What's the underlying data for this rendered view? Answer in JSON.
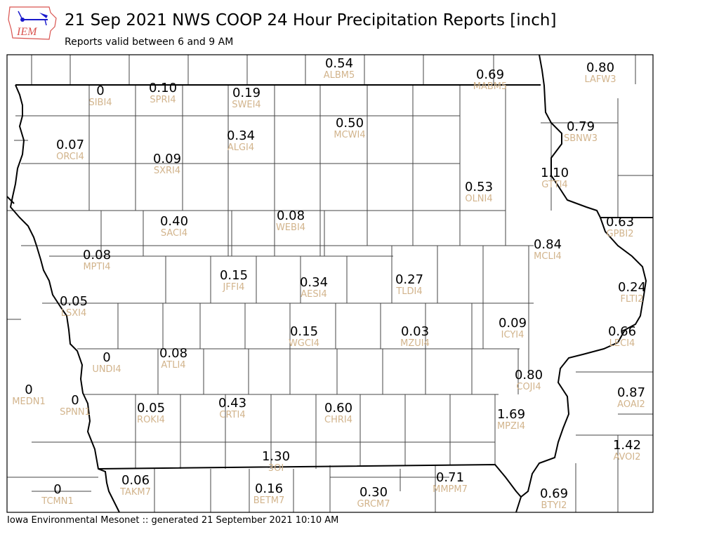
{
  "header": {
    "logo_text": "IEM",
    "title": "21 Sep 2021 NWS COOP 24 Hour Precipitation Reports [inch]",
    "subtitle": "Reports valid between 6 and 9 AM"
  },
  "footer": "Iowa Environmental Mesonet :: generated 21 September 2021 10:10 AM",
  "colors": {
    "value": "#000000",
    "station_label": "#d2b48c",
    "state_border": "#000000",
    "county_line": "#555555",
    "logo": "#d9534f",
    "logo_icon": "#1a1acc"
  },
  "stations": [
    {
      "id": "SIBI4",
      "value": "0"
    },
    {
      "id": "SPRI4",
      "value": "0.10"
    },
    {
      "id": "SWEI4",
      "value": "0.19"
    },
    {
      "id": "ALBM5",
      "value": "0.54"
    },
    {
      "id": "MABM5",
      "value": "0.69"
    },
    {
      "id": "LAFW3",
      "value": "0.80"
    },
    {
      "id": "ORCI4",
      "value": "0.07"
    },
    {
      "id": "ALGI4",
      "value": "0.34"
    },
    {
      "id": "MCWI4",
      "value": "0.50"
    },
    {
      "id": "SBNW3",
      "value": "0.79"
    },
    {
      "id": "SXRI4",
      "value": "0.09"
    },
    {
      "id": "GTTI4",
      "value": "1.10"
    },
    {
      "id": "OLNI4",
      "value": "0.53"
    },
    {
      "id": "SACI4",
      "value": "0.40"
    },
    {
      "id": "WEBI4",
      "value": "0.08"
    },
    {
      "id": "GPBI2",
      "value": "0.63"
    },
    {
      "id": "MCLI4",
      "value": "0.84"
    },
    {
      "id": "MPTI4",
      "value": "0.08"
    },
    {
      "id": "JFFI4",
      "value": "0.15"
    },
    {
      "id": "AESI4",
      "value": "0.34"
    },
    {
      "id": "TLDI4",
      "value": "0.27"
    },
    {
      "id": "FLTI2",
      "value": "0.24"
    },
    {
      "id": "LSXI4",
      "value": "0.05"
    },
    {
      "id": "ICYI4",
      "value": "0.09"
    },
    {
      "id": "WGCI4",
      "value": "0.15"
    },
    {
      "id": "MZUI4",
      "value": "0.03"
    },
    {
      "id": "LECI4",
      "value": "0.66"
    },
    {
      "id": "UNDI4",
      "value": "0"
    },
    {
      "id": "ATLI4",
      "value": "0.08"
    },
    {
      "id": "COJI4",
      "value": "0.80"
    },
    {
      "id": "MEDN1",
      "value": "0"
    },
    {
      "id": "SPNN1",
      "value": "0"
    },
    {
      "id": "AOAI2",
      "value": "0.87"
    },
    {
      "id": "ROKI4",
      "value": "0.05"
    },
    {
      "id": "CRTI4",
      "value": "0.43"
    },
    {
      "id": "CHRI4",
      "value": "0.60"
    },
    {
      "id": "MPZI4",
      "value": "1.69"
    },
    {
      "id": "AVOI2",
      "value": "1.42"
    },
    {
      "id": "3OI",
      "value": "1.30"
    },
    {
      "id": "TAKM7",
      "value": "0.06"
    },
    {
      "id": "MMPM7",
      "value": "0.71"
    },
    {
      "id": "GRCM7",
      "value": "0.30"
    },
    {
      "id": "BTYI2",
      "value": "0.69"
    },
    {
      "id": "TCMN1",
      "value": "0"
    },
    {
      "id": "BETM7",
      "value": "0.16"
    }
  ]
}
